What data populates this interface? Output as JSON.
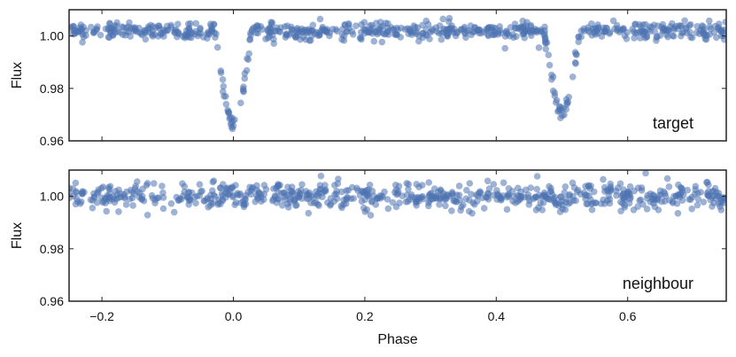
{
  "chart_data": [
    {
      "type": "scatter",
      "panel": "target",
      "annotation": "target",
      "xlabel": "",
      "ylabel": "Flux",
      "xlim": [
        -0.25,
        0.75
      ],
      "ylim": [
        0.96,
        1.01
      ],
      "yticks": [
        0.96,
        0.98,
        1.0
      ],
      "ytick_labels": [
        "0.96",
        "0.98",
        "1.00"
      ],
      "xticks": [
        -0.2,
        0.0,
        0.2,
        0.4,
        0.6
      ],
      "xtick_labels": [],
      "point_color": "#4c72b0",
      "baseline_flux": 1.002,
      "scatter_sigma": 0.0016,
      "eclipses": [
        {
          "phase": 0.0,
          "depth": 0.035,
          "half_width": 0.028
        },
        {
          "phase": 0.5,
          "depth": 0.031,
          "half_width": 0.028
        }
      ],
      "n_points": 700
    },
    {
      "type": "scatter",
      "panel": "neighbour",
      "annotation": "neighbour",
      "xlabel": "Phase",
      "ylabel": "Flux",
      "xlim": [
        -0.25,
        0.75
      ],
      "ylim": [
        0.96,
        1.01
      ],
      "yticks": [
        0.96,
        0.98,
        1.0
      ],
      "ytick_labels": [
        "0.96",
        "0.98",
        "1.00"
      ],
      "xticks": [
        -0.2,
        0.0,
        0.2,
        0.4,
        0.6
      ],
      "xtick_labels": [
        "−0.2",
        "0.0",
        "0.2",
        "0.4",
        "0.6"
      ],
      "point_color": "#4c72b0",
      "baseline_flux": 1.0,
      "scatter_sigma": 0.0025,
      "eclipses": [],
      "n_points": 700
    }
  ]
}
